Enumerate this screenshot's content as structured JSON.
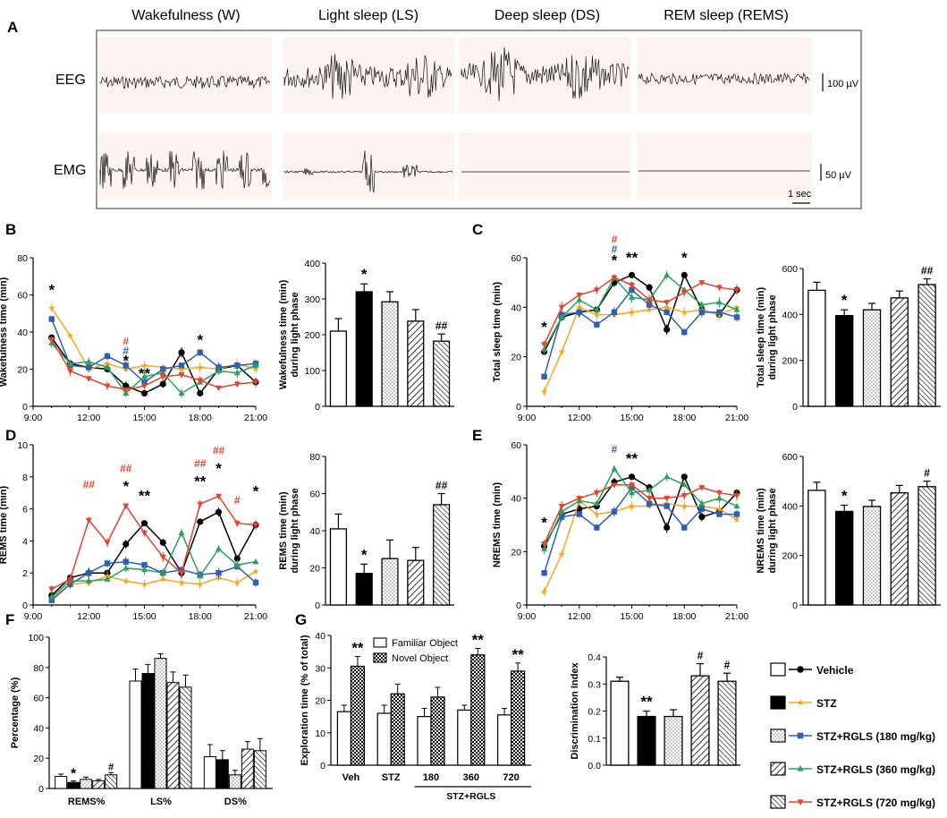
{
  "colors": {
    "vehicle": "#000000",
    "stz": "#f5a623",
    "rgls180": "#2f5fb3",
    "rgls360": "#2ca05a",
    "rgls720": "#e5422b",
    "eeg_bg": "#fdf3f1"
  },
  "panel_a": {
    "label": "A",
    "states": [
      "Wakefulness (W)",
      "Light sleep (LS)",
      "Deep sleep (DS)",
      "REM sleep (REMS)"
    ],
    "eeg_label": "EEG",
    "emg_label": "EMG",
    "eeg_scale": "100 µV",
    "emg_scale": "50 µV",
    "time_scale": "1 sec"
  },
  "legend": {
    "items": [
      {
        "name": "Vehicle",
        "color_key": "vehicle",
        "marker": "circle",
        "fill": "open"
      },
      {
        "name": "STZ",
        "color_key": "stz",
        "marker": "star",
        "fill": "solid"
      },
      {
        "name": "STZ+RGLS (180 mg/kg)",
        "color_key": "rgls180",
        "marker": "square",
        "fill": "dots"
      },
      {
        "name": "STZ+RGLS (360 mg/kg)",
        "color_key": "rgls360",
        "marker": "triangle-up",
        "fill": "hatch"
      },
      {
        "name": "STZ+RGLS (720 mg/kg)",
        "color_key": "rgls720",
        "marker": "triangle-down",
        "fill": "hatch2"
      }
    ]
  },
  "chart_data": [
    {
      "id": "B_line",
      "panel": "B",
      "type": "line",
      "ylabel": "Wakefulness time (min)",
      "ylim": [
        0,
        80
      ],
      "yticks": [
        0,
        20,
        40,
        60,
        80
      ],
      "x_hours": [
        10,
        11,
        12,
        13,
        14,
        15,
        16,
        17,
        18,
        19,
        20,
        21
      ],
      "xtick_labels": [
        "9:00",
        "12:00",
        "15:00",
        "18:00",
        "21:00"
      ],
      "series": [
        {
          "name": "Vehicle",
          "values": [
            37,
            23,
            21,
            20,
            11,
            7,
            12,
            29,
            7,
            20,
            22,
            13
          ]
        },
        {
          "name": "STZ",
          "values": [
            53,
            38,
            20,
            23,
            20,
            22,
            21,
            20,
            21,
            20,
            23,
            20
          ]
        },
        {
          "name": "STZ+RGLS (180 mg/kg)",
          "values": [
            47,
            22,
            21,
            27,
            22,
            13,
            20,
            22,
            29,
            21,
            22,
            23
          ]
        },
        {
          "name": "STZ+RGLS (360 mg/kg)",
          "values": [
            34,
            23,
            24,
            21,
            7,
            16,
            18,
            7,
            13,
            19,
            18,
            22
          ]
        },
        {
          "name": "STZ+RGLS (720 mg/kg)",
          "values": [
            36,
            19,
            15,
            11,
            9,
            11,
            16,
            17,
            14,
            10,
            12,
            13
          ]
        }
      ],
      "annotations": [
        {
          "x": 10,
          "y": 60,
          "text": "*",
          "color_key": "vehicle"
        },
        {
          "x": 14,
          "y": 33,
          "text": "#",
          "color_key": "rgls720"
        },
        {
          "x": 14,
          "y": 28,
          "text": "#",
          "color_key": "rgls180"
        },
        {
          "x": 14,
          "y": 22,
          "text": "*",
          "color_key": "vehicle"
        },
        {
          "x": 15,
          "y": 15,
          "text": "**",
          "color_key": "vehicle"
        },
        {
          "x": 18,
          "y": 33,
          "text": "*",
          "color_key": "vehicle"
        }
      ]
    },
    {
      "id": "B_bar",
      "panel": "B",
      "type": "bar",
      "ylabel": [
        "Wakefulness time (min)",
        "during light phase"
      ],
      "ylim": [
        0,
        400
      ],
      "yticks": [
        0,
        100,
        200,
        300,
        400
      ],
      "values": [
        210,
        320,
        292,
        238,
        182
      ],
      "errors": [
        35,
        22,
        28,
        32,
        20
      ],
      "annotations": [
        "",
        "*",
        "",
        "",
        "##"
      ]
    },
    {
      "id": "C_line",
      "panel": "C",
      "type": "line",
      "ylabel": "Total sleep time (min)",
      "ylim": [
        0,
        60
      ],
      "yticks": [
        0,
        20,
        40,
        60
      ],
      "x_hours": [
        10,
        11,
        12,
        13,
        14,
        15,
        16,
        17,
        18,
        19,
        20,
        21
      ],
      "xtick_labels": [
        "9:00",
        "12:00",
        "15:00",
        "18:00",
        "21:00"
      ],
      "series": [
        {
          "name": "Vehicle",
          "values": [
            22,
            36,
            38,
            39,
            50,
            53,
            48,
            31,
            53,
            39,
            37,
            47
          ]
        },
        {
          "name": "STZ",
          "values": [
            6,
            22,
            40,
            37,
            37,
            38,
            39,
            40,
            38,
            39,
            37,
            40
          ]
        },
        {
          "name": "STZ+RGLS (180 mg/kg)",
          "values": [
            12,
            37,
            38,
            33,
            38,
            47,
            41,
            38,
            30,
            38,
            38,
            36
          ]
        },
        {
          "name": "STZ+RGLS (360 mg/kg)",
          "values": [
            23,
            36,
            43,
            39,
            52,
            44,
            43,
            53,
            47,
            41,
            42,
            39
          ]
        },
        {
          "name": "STZ+RGLS (720 mg/kg)",
          "values": [
            25,
            40,
            45,
            47,
            52,
            49,
            43,
            42,
            46,
            50,
            48,
            47
          ]
        }
      ],
      "annotations": [
        {
          "x": 10,
          "y": 30,
          "text": "*",
          "color_key": "vehicle"
        },
        {
          "x": 14,
          "y": 66,
          "text": "#",
          "color_key": "rgls720"
        },
        {
          "x": 14,
          "y": 62,
          "text": "#",
          "color_key": "rgls180"
        },
        {
          "x": 14,
          "y": 57,
          "text": "*",
          "color_key": "vehicle"
        },
        {
          "x": 15,
          "y": 58,
          "text": "**",
          "color_key": "vehicle"
        },
        {
          "x": 18,
          "y": 58,
          "text": "*",
          "color_key": "vehicle"
        }
      ]
    },
    {
      "id": "C_bar",
      "panel": "C",
      "type": "bar",
      "ylabel": [
        "Total sleep time (min)",
        "during light phase"
      ],
      "ylim": [
        0,
        600
      ],
      "yticks": [
        0,
        200,
        400,
        600
      ],
      "values": [
        505,
        395,
        420,
        472,
        530
      ],
      "errors": [
        35,
        25,
        28,
        30,
        25
      ],
      "annotations": [
        "",
        "*",
        "",
        "",
        "##"
      ]
    },
    {
      "id": "D_line",
      "panel": "D",
      "type": "line",
      "ylabel": "REMS time (min)",
      "ylim": [
        0,
        10
      ],
      "yticks": [
        0,
        2,
        4,
        6,
        8,
        10
      ],
      "x_hours": [
        10,
        11,
        12,
        13,
        14,
        15,
        16,
        17,
        18,
        19,
        20,
        21
      ],
      "xtick_labels": [
        "9:00",
        "12:00",
        "15:00",
        "18:00",
        "21:00"
      ],
      "series": [
        {
          "name": "Vehicle",
          "values": [
            0.6,
            1.7,
            2.0,
            2.0,
            3.8,
            5.1,
            3.9,
            2.0,
            5.2,
            5.8,
            2.9,
            5.0
          ]
        },
        {
          "name": "STZ",
          "values": [
            0.4,
            1.3,
            1.4,
            1.8,
            1.5,
            1.3,
            1.6,
            1.4,
            1.3,
            1.7,
            1.4,
            2.1
          ]
        },
        {
          "name": "STZ+RGLS (180 mg/kg)",
          "values": [
            0.3,
            1.3,
            2.0,
            2.6,
            2.7,
            2.5,
            2.0,
            2.2,
            1.9,
            2.0,
            2.4,
            1.4
          ]
        },
        {
          "name": "STZ+RGLS (360 mg/kg)",
          "values": [
            0.5,
            1.5,
            1.5,
            1.6,
            2.3,
            2.2,
            2.0,
            4.5,
            1.8,
            3.5,
            2.5,
            2.7
          ]
        },
        {
          "name": "STZ+RGLS (720 mg/kg)",
          "values": [
            1.0,
            1.6,
            5.3,
            3.9,
            6.2,
            4.5,
            3.0,
            2.0,
            6.3,
            6.8,
            5.1,
            5.0
          ]
        }
      ],
      "annotations": [
        {
          "x": 12,
          "y": 7.3,
          "text": "##",
          "color_key": "rgls720"
        },
        {
          "x": 14,
          "y": 8.3,
          "text": "##",
          "color_key": "rgls720"
        },
        {
          "x": 14,
          "y": 7.1,
          "text": "*",
          "color_key": "vehicle"
        },
        {
          "x": 15,
          "y": 6.5,
          "text": "**",
          "color_key": "vehicle"
        },
        {
          "x": 18,
          "y": 8.6,
          "text": "##",
          "color_key": "rgls720"
        },
        {
          "x": 18,
          "y": 7.4,
          "text": "**",
          "color_key": "vehicle"
        },
        {
          "x": 19,
          "y": 9.4,
          "text": "##",
          "color_key": "rgls720"
        },
        {
          "x": 19,
          "y": 8.2,
          "text": "*",
          "color_key": "vehicle"
        },
        {
          "x": 20,
          "y": 6.3,
          "text": "#",
          "color_key": "rgls720"
        },
        {
          "x": 21,
          "y": 6.8,
          "text": "*",
          "color_key": "vehicle"
        }
      ]
    },
    {
      "id": "D_bar",
      "panel": "D",
      "type": "bar",
      "ylabel": [
        "REMS time (min)",
        "during light phase"
      ],
      "ylim": [
        0,
        80
      ],
      "yticks": [
        0,
        20,
        40,
        60,
        80
      ],
      "values": [
        41,
        17,
        25,
        24,
        54
      ],
      "errors": [
        8,
        5,
        10,
        7,
        6
      ],
      "annotations": [
        "",
        "*",
        "",
        "",
        "##"
      ]
    },
    {
      "id": "E_line",
      "panel": "E",
      "type": "line",
      "ylabel": "NREMS time (min)",
      "ylim": [
        0,
        60
      ],
      "yticks": [
        0,
        20,
        40,
        60
      ],
      "x_hours": [
        10,
        11,
        12,
        13,
        14,
        15,
        16,
        17,
        18,
        19,
        20,
        21
      ],
      "xtick_labels": [
        "9:00",
        "12:00",
        "15:00",
        "18:00",
        "21:00"
      ],
      "series": [
        {
          "name": "Vehicle",
          "values": [
            22,
            34,
            36,
            37,
            46,
            48,
            44,
            29,
            48,
            33,
            35,
            42
          ]
        },
        {
          "name": "STZ",
          "values": [
            5,
            19,
            39,
            34,
            35,
            37,
            37,
            38,
            37,
            37,
            36,
            32
          ]
        },
        {
          "name": "STZ+RGLS (180 mg/kg)",
          "values": [
            12,
            33,
            34,
            29,
            35,
            44,
            38,
            37,
            29,
            36,
            34,
            34
          ]
        },
        {
          "name": "STZ+RGLS (360 mg/kg)",
          "values": [
            21,
            35,
            39,
            38,
            51,
            42,
            43,
            48,
            45,
            38,
            40,
            37
          ]
        },
        {
          "name": "STZ+RGLS (720 mg/kg)",
          "values": [
            23,
            37,
            40,
            42,
            45,
            45,
            40,
            40,
            41,
            44,
            42,
            41
          ]
        }
      ],
      "annotations": [
        {
          "x": 10,
          "y": 29,
          "text": "*",
          "color_key": "vehicle"
        },
        {
          "x": 14,
          "y": 57,
          "text": "#",
          "color_key": "rgls180"
        },
        {
          "x": 15,
          "y": 53,
          "text": "**",
          "color_key": "vehicle"
        }
      ]
    },
    {
      "id": "E_bar",
      "panel": "E",
      "type": "bar",
      "ylabel": [
        "NREMS time (min)",
        "during light phase"
      ],
      "ylim": [
        0,
        600
      ],
      "yticks": [
        0,
        200,
        400,
        600
      ],
      "values": [
        463,
        378,
        398,
        453,
        478
      ],
      "errors": [
        33,
        25,
        25,
        30,
        22
      ],
      "annotations": [
        "",
        "*",
        "",
        "",
        "#"
      ]
    },
    {
      "id": "F_bar",
      "panel": "F",
      "type": "bar",
      "ylabel": "Percentage (%)",
      "ylim": [
        0,
        100
      ],
      "yticks": [
        0,
        20,
        40,
        60,
        80,
        100
      ],
      "categories": [
        "REMS%",
        "LS%",
        "DS%"
      ],
      "values": [
        [
          8,
          4,
          6,
          5,
          9
        ],
        [
          71,
          76,
          86,
          70,
          67
        ],
        [
          21,
          19,
          9,
          26,
          25
        ]
      ],
      "errors": [
        [
          1.5,
          1,
          1.5,
          1,
          1.5
        ],
        [
          8,
          6,
          3,
          7,
          8
        ],
        [
          8,
          6,
          3,
          5,
          8
        ]
      ],
      "annotations": [
        [
          "",
          "*",
          "",
          "",
          "#"
        ],
        [
          "",
          "",
          "",
          "",
          ""
        ],
        [
          "",
          "",
          "",
          "",
          ""
        ]
      ]
    },
    {
      "id": "G_exploration",
      "panel": "G",
      "type": "bar",
      "ylabel": "Exploration time (% of total)",
      "ylim": [
        0,
        40
      ],
      "yticks": [
        0,
        10,
        20,
        30,
        40
      ],
      "categories": [
        "Veh",
        "STZ",
        "180",
        "360",
        "720"
      ],
      "group_label": "STZ+RGLS",
      "series": [
        {
          "name": "Familiar Object",
          "values": [
            16.5,
            16,
            15,
            17,
            15.5
          ],
          "errors": [
            2,
            2.5,
            2.5,
            1.5,
            2
          ]
        },
        {
          "name": "Novel Object",
          "values": [
            30.5,
            22,
            21,
            34,
            29
          ],
          "errors": [
            3,
            3,
            3,
            2,
            2.5
          ]
        }
      ],
      "annotations": [
        "**",
        "",
        "",
        "**",
        "**"
      ]
    },
    {
      "id": "G_discrimination",
      "panel": "G",
      "type": "bar",
      "ylabel": "Discrimination Index",
      "ylim": [
        0,
        0.4
      ],
      "yticks": [
        0,
        0.1,
        0.2,
        0.3,
        0.4
      ],
      "values": [
        0.31,
        0.18,
        0.18,
        0.33,
        0.31
      ],
      "errors": [
        0.015,
        0.02,
        0.025,
        0.045,
        0.03
      ],
      "annotations": [
        "",
        "**",
        "",
        "#",
        "#"
      ]
    }
  ]
}
